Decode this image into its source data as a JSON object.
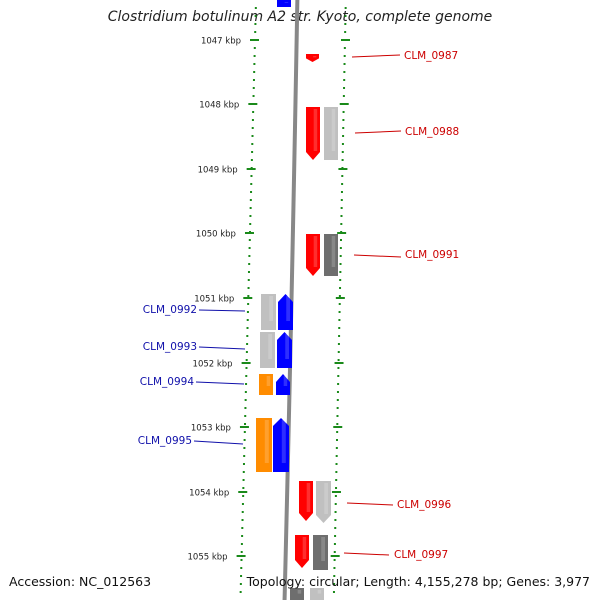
{
  "title": "Clostridium botulinum A2 str. Kyoto, complete genome",
  "accession_text": "Accession: NC_012563",
  "summary_text": "Topology: circular; Length: 4,155,278 bp; Genes: 3,977",
  "colors": {
    "forward_label": "#cc0000",
    "reverse_label": "#1010aa",
    "ruler_dots": "#1a8a1a",
    "backbone": "#888888",
    "red": "#ff0000",
    "blue": "#0000ff",
    "orange": "#ff8c00",
    "light_gray": "#c0c0c0",
    "dark_gray": "#6e6e6e"
  },
  "ruler_ticks": [
    "1047 kbp",
    "1048 kbp",
    "1049 kbp",
    "1050 kbp",
    "1051 kbp",
    "1052 kbp",
    "1053 kbp",
    "1054 kbp",
    "1055 kbp"
  ],
  "gene_labels": [
    {
      "text": "CLM_0987",
      "strand": "forward"
    },
    {
      "text": "CLM_0988",
      "strand": "forward"
    },
    {
      "text": "CLM_0991",
      "strand": "forward"
    },
    {
      "text": "CLM_0992",
      "strand": "reverse"
    },
    {
      "text": "CLM_0993",
      "strand": "reverse"
    },
    {
      "text": "CLM_0994",
      "strand": "reverse"
    },
    {
      "text": "CLM_0995",
      "strand": "reverse"
    },
    {
      "text": "CLM_0996",
      "strand": "forward"
    },
    {
      "text": "CLM_0997",
      "strand": "forward"
    }
  ]
}
